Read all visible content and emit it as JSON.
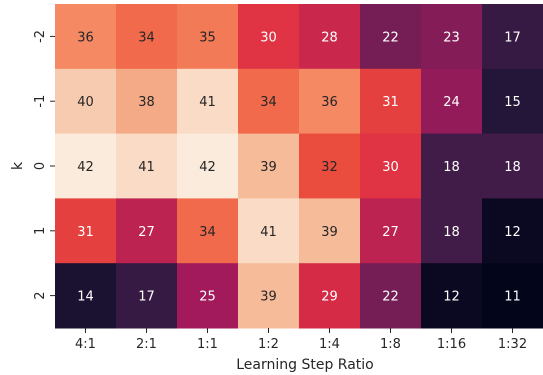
{
  "chart_data": {
    "type": "heatmap",
    "xlabel": "Learning Step Ratio",
    "ylabel": "k",
    "x_categories": [
      "4:1",
      "2:1",
      "1:1",
      "1:2",
      "1:4",
      "1:8",
      "1:16",
      "1:32"
    ],
    "y_categories": [
      "-2",
      "-1",
      "0",
      "1",
      "2"
    ],
    "values": [
      [
        36,
        34,
        35,
        30,
        28,
        22,
        23,
        17
      ],
      [
        40,
        38,
        41,
        34,
        36,
        31,
        24,
        15
      ],
      [
        42,
        41,
        42,
        39,
        32,
        30,
        18,
        18
      ],
      [
        31,
        27,
        34,
        41,
        39,
        27,
        18,
        12
      ],
      [
        14,
        17,
        25,
        39,
        29,
        22,
        12,
        11
      ]
    ],
    "colormap": "rocket",
    "value_range": [
      11,
      42
    ],
    "annotations": true
  }
}
